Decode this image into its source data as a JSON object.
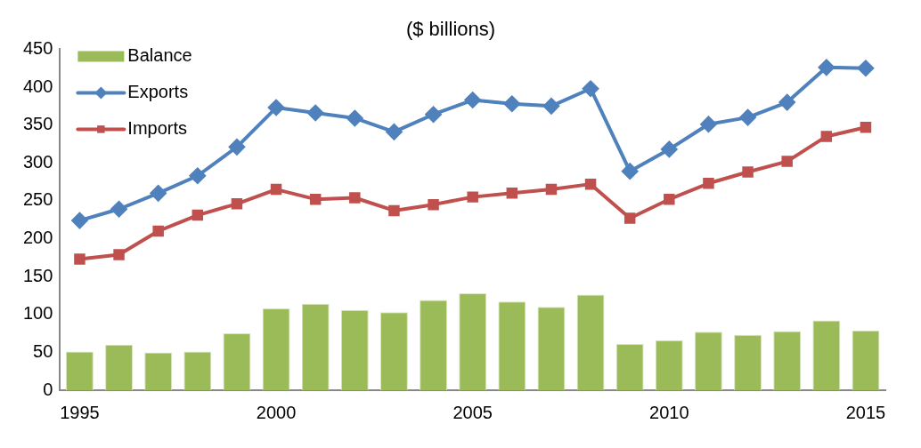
{
  "chart_data": {
    "type": "bar",
    "title": "($ billions)",
    "categories": [
      "1995",
      null,
      null,
      null,
      null,
      "2000",
      null,
      null,
      null,
      null,
      "2005",
      null,
      null,
      null,
      null,
      "2010",
      null,
      null,
      null,
      null,
      "2015"
    ],
    "series": [
      {
        "name": "Balance",
        "color": "#9bbb59",
        "values": [
          51,
          60,
          50,
          51,
          75,
          108,
          114,
          106,
          103,
          119,
          128,
          117,
          110,
          126,
          61,
          66,
          77,
          73,
          78,
          92,
          79
        ]
      },
      {
        "name": "Exports",
        "type": "line",
        "color": "#4f81bd",
        "marker": "diamond",
        "values": [
          224,
          239,
          260,
          283,
          321,
          373,
          366,
          359,
          341,
          364,
          383,
          378,
          375,
          398,
          289,
          318,
          351,
          360,
          380,
          426,
          425
        ]
      },
      {
        "name": "Imports",
        "type": "line",
        "color": "#c0504d",
        "marker": "square",
        "values": [
          173,
          179,
          210,
          231,
          246,
          265,
          252,
          254,
          237,
          245,
          255,
          260,
          265,
          272,
          227,
          252,
          273,
          288,
          302,
          335,
          347
        ]
      }
    ],
    "ylim": [
      0,
      450
    ],
    "yticks": [
      0,
      50,
      100,
      150,
      200,
      250,
      300,
      350,
      400,
      450
    ],
    "grid": false,
    "legend": "top left"
  }
}
